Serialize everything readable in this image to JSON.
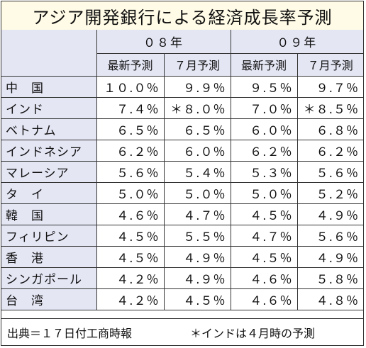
{
  "title": "アジア開発銀行による経済成長率予測",
  "chart_data": {
    "type": "table",
    "title": "アジア開発銀行による経済成長率予測",
    "year_headers": [
      "０８年",
      "０９年"
    ],
    "column_headers": [
      "最新予測",
      "７月予測",
      "最新予測",
      "７月予測"
    ],
    "rows": [
      {
        "name": "中　国",
        "values": [
          "１０.０％",
          "９.９％",
          "９.５％",
          "９.７％"
        ]
      },
      {
        "name": "インド",
        "values": [
          "７.４％",
          "＊８.０％",
          "７.０％",
          "＊８.５％"
        ]
      },
      {
        "name": "ベトナム",
        "values": [
          "６.５％",
          "６.５％",
          "６.０％",
          "６.８％"
        ]
      },
      {
        "name": "インドネシア",
        "values": [
          "６.２％",
          "６.０％",
          "６.２％",
          "６.２％"
        ]
      },
      {
        "name": "マレーシア",
        "values": [
          "５.６％",
          "５.４％",
          "５.３％",
          "５.６％"
        ]
      },
      {
        "name": "タ　イ",
        "values": [
          "５.０％",
          "５.０％",
          "５.０％",
          "５.２％"
        ]
      },
      {
        "name": "韓　国",
        "values": [
          "４.６％",
          "４.７％",
          "４.５％",
          "４.９％"
        ]
      },
      {
        "name": "フィリピン",
        "values": [
          "４.５％",
          "５.５％",
          "４.７％",
          "５.６％"
        ]
      },
      {
        "name": "香　港",
        "values": [
          "４.５％",
          "４.９％",
          "４.５％",
          "４.９％"
        ]
      },
      {
        "name": "シンガポール",
        "values": [
          "４.２％",
          "４.９％",
          "４.６％",
          "５.８％"
        ]
      },
      {
        "name": "台　湾",
        "values": [
          "４.２％",
          "４.５％",
          "４.６％",
          "４.８％"
        ]
      }
    ]
  },
  "footer": {
    "source": "出典＝１７日付工商時報",
    "note": "＊インドは４月時の予測"
  },
  "colors": {
    "title_background": "#fffbe6",
    "header_background": "#e4e6f4",
    "border": "#333333"
  }
}
